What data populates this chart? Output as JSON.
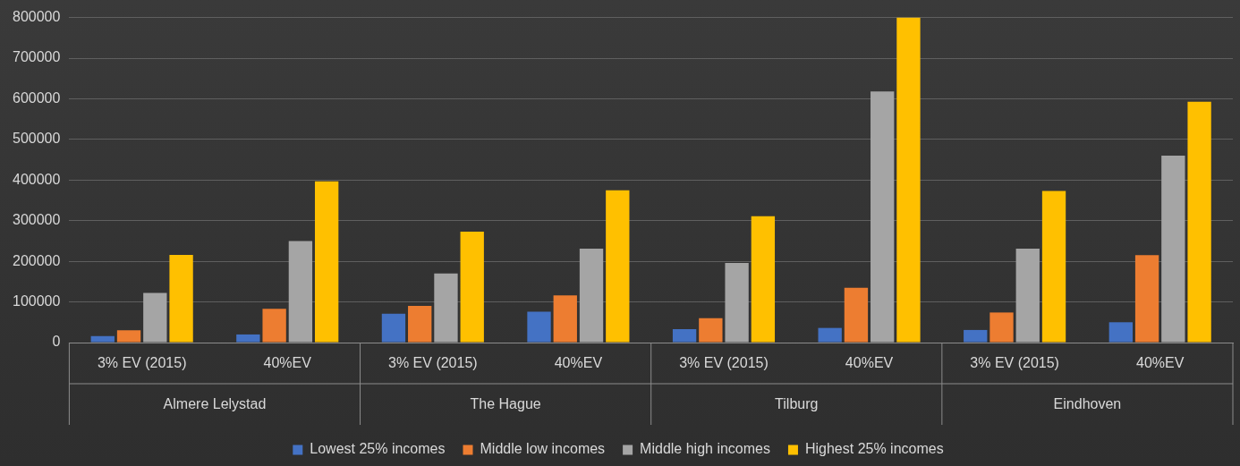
{
  "chart_data": {
    "type": "bar",
    "categories": [
      "3% EV (2015)",
      "40%EV",
      "3% EV (2015)",
      "40%EV",
      "3% EV (2015)",
      "40%EV",
      "3% EV (2015)",
      "40%EV"
    ],
    "annotations": [
      "Almere Lelystad",
      "The Hague",
      "Tilburg",
      "Eindhoven"
    ],
    "series": [
      {
        "name": "Lowest 25% incomes",
        "color": "#4472c4",
        "values": [
          16000,
          20000,
          71000,
          76000,
          33000,
          36000,
          31000,
          50000
        ]
      },
      {
        "name": "Middle low incomes",
        "color": "#ed7d31",
        "values": [
          30000,
          83000,
          90000,
          116000,
          60000,
          135000,
          74000,
          215000
        ]
      },
      {
        "name": "Middle high incomes",
        "color": "#a5a5a5",
        "values": [
          122000,
          250000,
          170000,
          231000,
          196000,
          618000,
          231000,
          460000
        ]
      },
      {
        "name": "Highest 25% incomes",
        "color": "#ffc000",
        "values": [
          216000,
          397000,
          273000,
          375000,
          311000,
          800000,
          373000,
          593000
        ]
      }
    ],
    "ylim": [
      0,
      800000
    ],
    "yticks": [
      0,
      100000,
      200000,
      300000,
      400000,
      500000,
      600000,
      700000,
      800000
    ],
    "grid": "y",
    "legend": "bottom"
  }
}
